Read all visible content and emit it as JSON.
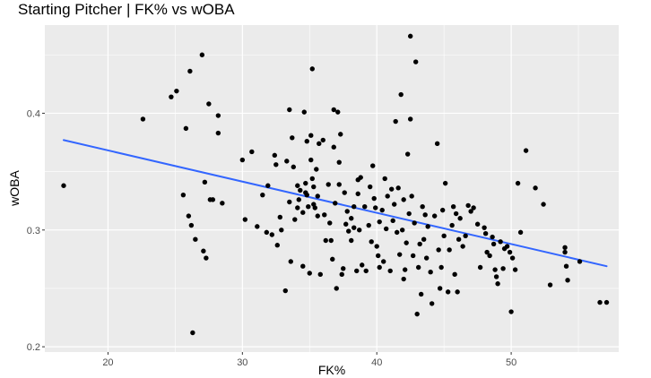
{
  "chart_data": {
    "type": "scatter",
    "title": "Starting Pitcher | FK% vs wOBA",
    "xlabel": "FK%",
    "ylabel": "wOBA",
    "xlim": [
      15.3,
      58.0
    ],
    "ylim": [
      0.1955,
      0.4755
    ],
    "x_ticks": [
      20,
      30,
      40,
      50
    ],
    "x_tick_labels": [
      "20",
      "30",
      "40",
      "50"
    ],
    "y_ticks": [
      0.2,
      0.3,
      0.4
    ],
    "y_tick_labels": [
      "0.2",
      "0.3",
      "0.4"
    ],
    "grid": true,
    "background": "#ebebeb",
    "grid_color": "#ffffff",
    "point_color": "#000000",
    "trend_color": "#3366ff",
    "trend_line": {
      "x": [
        16.7,
        57.1
      ],
      "y": [
        0.377,
        0.269
      ]
    },
    "points": [
      [
        16.7,
        0.338
      ],
      [
        22.6,
        0.395
      ],
      [
        24.7,
        0.414
      ],
      [
        25.1,
        0.419
      ],
      [
        25.6,
        0.33
      ],
      [
        25.8,
        0.387
      ],
      [
        26.0,
        0.312
      ],
      [
        26.1,
        0.436
      ],
      [
        26.2,
        0.304
      ],
      [
        26.3,
        0.212
      ],
      [
        26.5,
        0.292
      ],
      [
        27.0,
        0.45
      ],
      [
        27.1,
        0.282
      ],
      [
        27.2,
        0.341
      ],
      [
        27.3,
        0.276
      ],
      [
        27.5,
        0.408
      ],
      [
        27.6,
        0.326
      ],
      [
        27.8,
        0.326
      ],
      [
        28.2,
        0.398
      ],
      [
        28.2,
        0.383
      ],
      [
        28.5,
        0.323
      ],
      [
        30.0,
        0.36
      ],
      [
        30.2,
        0.309
      ],
      [
        30.7,
        0.367
      ],
      [
        31.1,
        0.303
      ],
      [
        31.5,
        0.33
      ],
      [
        31.8,
        0.298
      ],
      [
        31.9,
        0.338
      ],
      [
        32.2,
        0.296
      ],
      [
        32.4,
        0.364
      ],
      [
        32.5,
        0.356
      ],
      [
        32.6,
        0.287
      ],
      [
        32.8,
        0.311
      ],
      [
        32.9,
        0.3
      ],
      [
        33.2,
        0.248
      ],
      [
        33.3,
        0.359
      ],
      [
        33.5,
        0.403
      ],
      [
        33.5,
        0.324
      ],
      [
        33.6,
        0.273
      ],
      [
        33.7,
        0.379
      ],
      [
        33.8,
        0.354
      ],
      [
        33.9,
        0.309
      ],
      [
        34.1,
        0.338
      ],
      [
        34.1,
        0.319
      ],
      [
        34.2,
        0.326
      ],
      [
        34.3,
        0.334
      ],
      [
        34.5,
        0.315
      ],
      [
        34.5,
        0.269
      ],
      [
        34.6,
        0.401
      ],
      [
        34.7,
        0.34
      ],
      [
        34.7,
        0.332
      ],
      [
        34.8,
        0.376
      ],
      [
        34.8,
        0.33
      ],
      [
        34.9,
        0.32
      ],
      [
        35.0,
        0.263
      ],
      [
        35.1,
        0.381
      ],
      [
        35.1,
        0.36
      ],
      [
        35.2,
        0.438
      ],
      [
        35.2,
        0.344
      ],
      [
        35.3,
        0.337
      ],
      [
        35.3,
        0.322
      ],
      [
        35.4,
        0.319
      ],
      [
        35.5,
        0.352
      ],
      [
        35.6,
        0.329
      ],
      [
        35.6,
        0.312
      ],
      [
        35.7,
        0.374
      ],
      [
        35.8,
        0.262
      ],
      [
        36.0,
        0.377
      ],
      [
        36.1,
        0.313
      ],
      [
        36.2,
        0.291
      ],
      [
        36.4,
        0.339
      ],
      [
        36.5,
        0.306
      ],
      [
        36.6,
        0.291
      ],
      [
        36.7,
        0.275
      ],
      [
        36.8,
        0.403
      ],
      [
        36.8,
        0.371
      ],
      [
        36.9,
        0.323
      ],
      [
        37.0,
        0.25
      ],
      [
        37.1,
        0.401
      ],
      [
        37.2,
        0.358
      ],
      [
        37.2,
        0.339
      ],
      [
        37.3,
        0.382
      ],
      [
        37.4,
        0.262
      ],
      [
        37.5,
        0.267
      ],
      [
        37.6,
        0.332
      ],
      [
        37.7,
        0.305
      ],
      [
        37.8,
        0.316
      ],
      [
        37.9,
        0.299
      ],
      [
        38.1,
        0.291
      ],
      [
        38.1,
        0.31
      ],
      [
        38.3,
        0.32
      ],
      [
        38.3,
        0.302
      ],
      [
        38.5,
        0.265
      ],
      [
        38.6,
        0.331
      ],
      [
        38.6,
        0.343
      ],
      [
        38.7,
        0.3
      ],
      [
        38.8,
        0.345
      ],
      [
        38.9,
        0.27
      ],
      [
        39.1,
        0.32
      ],
      [
        39.2,
        0.265
      ],
      [
        39.4,
        0.304
      ],
      [
        39.5,
        0.337
      ],
      [
        39.6,
        0.29
      ],
      [
        39.7,
        0.355
      ],
      [
        39.8,
        0.327
      ],
      [
        39.9,
        0.319
      ],
      [
        40.0,
        0.286
      ],
      [
        40.1,
        0.278
      ],
      [
        40.2,
        0.307
      ],
      [
        40.2,
        0.268
      ],
      [
        40.4,
        0.317
      ],
      [
        40.5,
        0.273
      ],
      [
        40.6,
        0.344
      ],
      [
        40.7,
        0.301
      ],
      [
        40.8,
        0.329
      ],
      [
        41.0,
        0.265
      ],
      [
        41.1,
        0.335
      ],
      [
        41.2,
        0.308
      ],
      [
        41.3,
        0.322
      ],
      [
        41.4,
        0.393
      ],
      [
        41.5,
        0.298
      ],
      [
        41.6,
        0.336
      ],
      [
        41.7,
        0.279
      ],
      [
        41.8,
        0.416
      ],
      [
        41.9,
        0.3
      ],
      [
        42.0,
        0.258
      ],
      [
        42.0,
        0.326
      ],
      [
        42.1,
        0.266
      ],
      [
        42.2,
        0.289
      ],
      [
        42.3,
        0.365
      ],
      [
        42.4,
        0.314
      ],
      [
        42.5,
        0.466
      ],
      [
        42.5,
        0.395
      ],
      [
        42.6,
        0.329
      ],
      [
        42.7,
        0.278
      ],
      [
        42.8,
        0.306
      ],
      [
        42.9,
        0.444
      ],
      [
        43.0,
        0.228
      ],
      [
        43.1,
        0.268
      ],
      [
        43.2,
        0.288
      ],
      [
        43.3,
        0.245
      ],
      [
        43.4,
        0.32
      ],
      [
        43.5,
        0.292
      ],
      [
        43.6,
        0.313
      ],
      [
        43.7,
        0.276
      ],
      [
        43.8,
        0.303
      ],
      [
        44.0,
        0.264
      ],
      [
        44.1,
        0.237
      ],
      [
        44.3,
        0.312
      ],
      [
        44.5,
        0.374
      ],
      [
        44.6,
        0.283
      ],
      [
        44.7,
        0.25
      ],
      [
        44.8,
        0.268
      ],
      [
        44.9,
        0.317
      ],
      [
        45.0,
        0.295
      ],
      [
        45.1,
        0.34
      ],
      [
        45.3,
        0.247
      ],
      [
        45.4,
        0.283
      ],
      [
        45.6,
        0.304
      ],
      [
        45.7,
        0.32
      ],
      [
        45.8,
        0.262
      ],
      [
        45.9,
        0.314
      ],
      [
        46.0,
        0.247
      ],
      [
        46.1,
        0.292
      ],
      [
        46.2,
        0.31
      ],
      [
        46.4,
        0.286
      ],
      [
        46.6,
        0.295
      ],
      [
        46.8,
        0.321
      ],
      [
        47.0,
        0.316
      ],
      [
        47.2,
        0.319
      ],
      [
        47.5,
        0.305
      ],
      [
        47.7,
        0.268
      ],
      [
        48.0,
        0.302
      ],
      [
        48.1,
        0.297
      ],
      [
        48.2,
        0.281
      ],
      [
        48.4,
        0.278
      ],
      [
        48.6,
        0.294
      ],
      [
        48.7,
        0.288
      ],
      [
        48.8,
        0.266
      ],
      [
        48.9,
        0.26
      ],
      [
        49.0,
        0.254
      ],
      [
        49.2,
        0.29
      ],
      [
        49.4,
        0.267
      ],
      [
        49.5,
        0.284
      ],
      [
        49.7,
        0.286
      ],
      [
        49.9,
        0.281
      ],
      [
        50.0,
        0.23
      ],
      [
        50.1,
        0.276
      ],
      [
        50.3,
        0.266
      ],
      [
        50.5,
        0.34
      ],
      [
        50.7,
        0.298
      ],
      [
        51.1,
        0.368
      ],
      [
        51.8,
        0.336
      ],
      [
        52.4,
        0.322
      ],
      [
        52.9,
        0.253
      ],
      [
        54.0,
        0.285
      ],
      [
        54.0,
        0.281
      ],
      [
        54.1,
        0.269
      ],
      [
        54.2,
        0.257
      ],
      [
        55.1,
        0.273
      ],
      [
        56.6,
        0.238
      ],
      [
        57.1,
        0.238
      ]
    ]
  }
}
